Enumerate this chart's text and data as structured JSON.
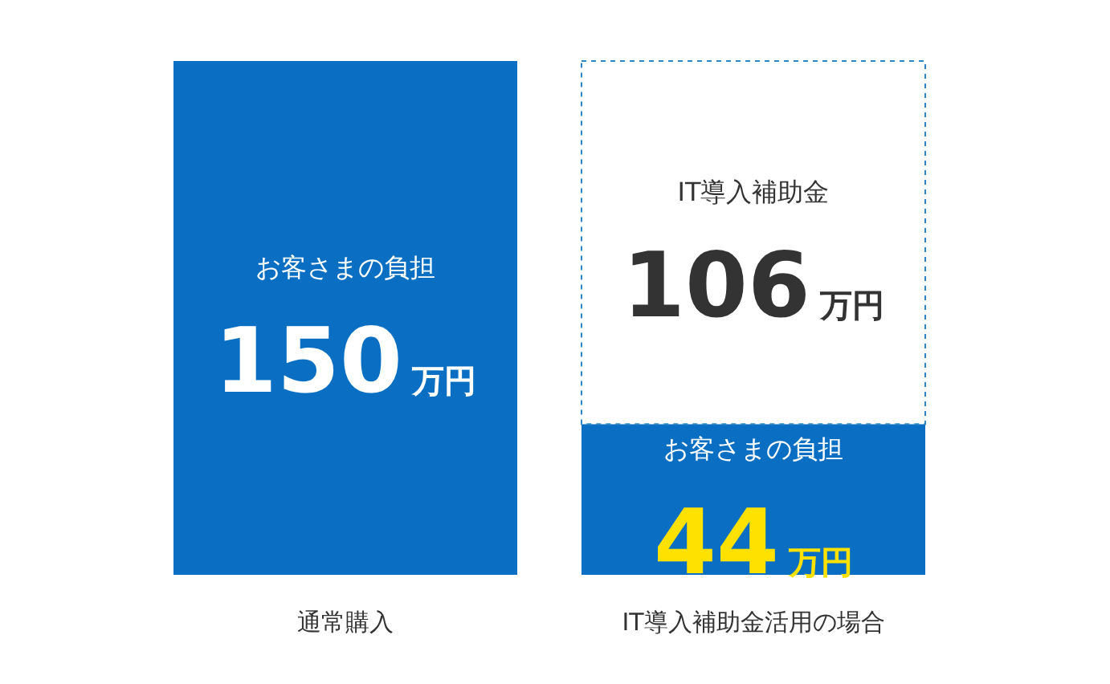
{
  "chart_data": {
    "type": "bar",
    "stacked": true,
    "legend": false,
    "grid": false,
    "data_labels": true,
    "categories": [
      "通常購入",
      "IT導入補助金活用の場合"
    ],
    "series": [
      {
        "name": "お客さまの負担",
        "color": "#0a6fc2",
        "values": [
          150,
          44
        ],
        "value_labels": [
          "150万円",
          "44万円"
        ]
      },
      {
        "name": "IT導入補助金",
        "color": "#ffffff",
        "values": [
          null,
          106
        ],
        "value_labels": [
          null,
          "106万円"
        ]
      }
    ]
  }
}
